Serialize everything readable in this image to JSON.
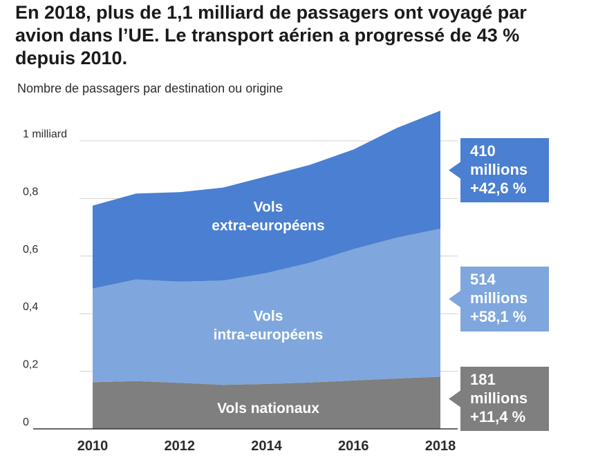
{
  "title": "En 2018, plus de 1,1 milliard de passagers ont voyagé par avion dans l’UE. Le transport aérien a progressé de 43 % depuis 2010.",
  "subtitle": "Nombre de passagers par destination ou origine",
  "chart_data": {
    "type": "area",
    "stacked": true,
    "x": [
      2010,
      2011,
      2012,
      2013,
      2014,
      2015,
      2016,
      2017,
      2018
    ],
    "xticks": [
      "2010",
      "2012",
      "2014",
      "2016",
      "2018"
    ],
    "ylim": [
      0,
      1.1
    ],
    "yticks": [
      {
        "value": 0,
        "label": "0"
      },
      {
        "value": 0.2,
        "label": "0,2"
      },
      {
        "value": 0.4,
        "label": "0,4"
      },
      {
        "value": 0.6,
        "label": "0,6"
      },
      {
        "value": 0.8,
        "label": "0,8"
      },
      {
        "value": 1.0,
        "label": "1 milliard"
      }
    ],
    "unit": "milliards de passagers",
    "series": [
      {
        "name": "Vols nationaux",
        "label_lines": [
          "Vols nationaux"
        ],
        "color": "#7f7f7f",
        "values": [
          0.162,
          0.166,
          0.16,
          0.153,
          0.156,
          0.161,
          0.168,
          0.175,
          0.181
        ],
        "annotation": [
          "181",
          "millions",
          "+11,4 %"
        ]
      },
      {
        "name": "Vols intra-européens",
        "label_lines": [
          "Vols",
          "intra-européens"
        ],
        "color": "#7fa7dd",
        "values": [
          0.325,
          0.353,
          0.351,
          0.362,
          0.385,
          0.416,
          0.456,
          0.489,
          0.514
        ],
        "annotation": [
          "514",
          "millions",
          "+58,1 %"
        ]
      },
      {
        "name": "Vols extra-européens",
        "label_lines": [
          "Vols",
          "extra-européens"
        ],
        "color": "#4a7fd1",
        "values": [
          0.288,
          0.298,
          0.311,
          0.323,
          0.336,
          0.34,
          0.346,
          0.381,
          0.41
        ],
        "annotation": [
          "410",
          "millions",
          "+42,6 %"
        ]
      }
    ]
  }
}
